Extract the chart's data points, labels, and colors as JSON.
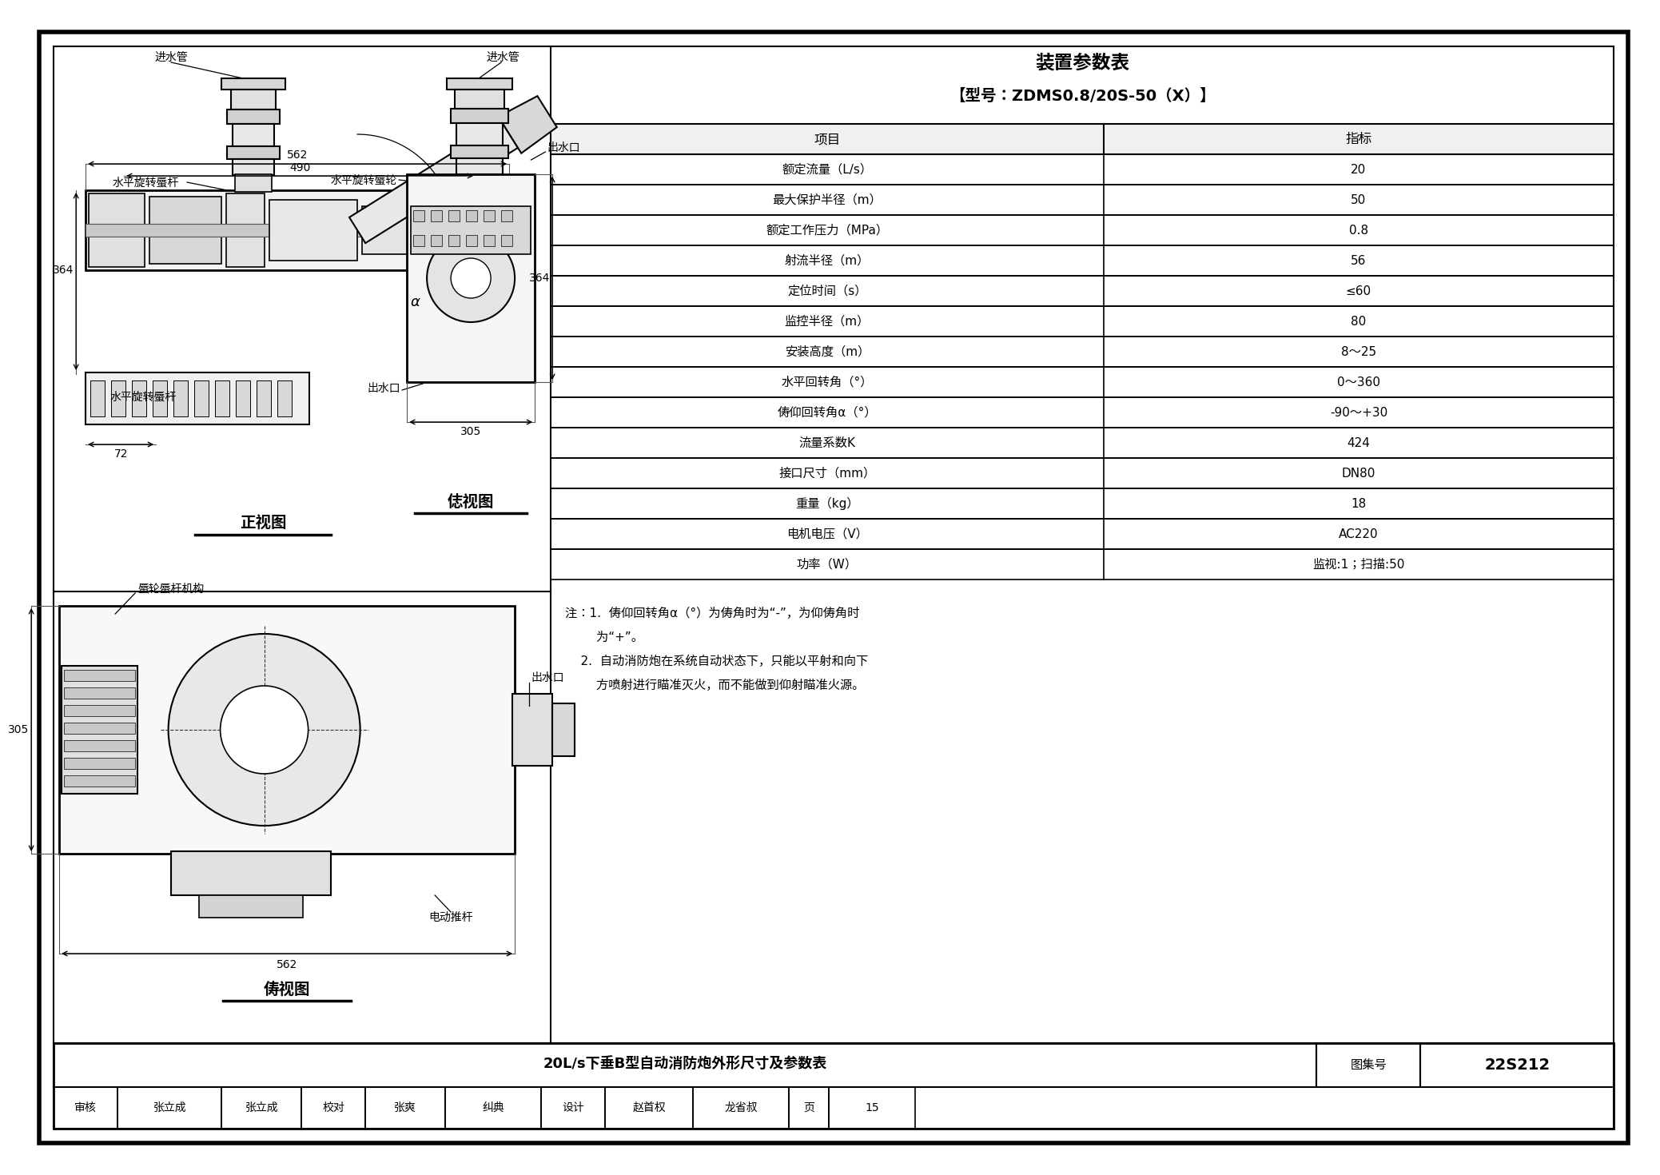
{
  "bg_color": "#ffffff",
  "line_color": "#000000",
  "title": "装置参数表",
  "model": "【型号：ZDMS0.8/20S-50（X）】",
  "table_headers": [
    "项目",
    "指标"
  ],
  "table_rows": [
    [
      "额定流量（L/s）",
      "20"
    ],
    [
      "最大保护半径（m）",
      "50"
    ],
    [
      "额定工作压力（MPa）",
      "0.8"
    ],
    [
      "射流半径（m）",
      "56"
    ],
    [
      "定位时间（s）",
      "≤60"
    ],
    [
      "监控半径（m）",
      "80"
    ],
    [
      "安装高度（m）",
      "8～25"
    ],
    [
      "水平回转角（°）",
      "0～360"
    ],
    [
      "俦仰回转角α（°）",
      "-90～+30"
    ],
    [
      "流量系数K",
      "424"
    ],
    [
      "接口尺寸（mm）",
      "DN80"
    ],
    [
      "重量（kg）",
      "18"
    ],
    [
      "电机电压（V）",
      "AC220"
    ],
    [
      "功率（W）",
      "监视:1；扫描:50"
    ]
  ],
  "note1a": "注：1.  俦仰回转角α（°）为俦角时为“-”，为仰俦角时",
  "note1b": "        为“+”。",
  "note2a": "    2.  自动消防炮在系统自动状态下，只能以平射和向下",
  "note2b": "        方喷射进行瞄准灭火，而不能做到仰射瞄准火源。",
  "title_block_main": "20L/s下垂B型自动消防炮外形尺寸及参数表",
  "title_block_set_label": "图集号",
  "title_block_set_val": "22S212",
  "sig_cells": [
    [
      "审核",
      80
    ],
    [
      "张立成",
      130
    ],
    [
      "张立成",
      100
    ],
    [
      "校对",
      80
    ],
    [
      "张爽",
      100
    ],
    [
      "纠典",
      120
    ],
    [
      "设计",
      80
    ],
    [
      "赵首权",
      110
    ],
    [
      "龙省叔",
      120
    ],
    [
      "页",
      50
    ],
    [
      "15",
      108
    ]
  ],
  "label_jinshui_front": "进水管",
  "label_worm_top": "水平旋转蜃杆",
  "label_562": "562",
  "label_490": "490",
  "label_364_v": "364",
  "label_72": "72",
  "label_chushui": "出水口",
  "label_worm_bot": "水平旋转蜃杆",
  "label_alpha": "α",
  "label_zhengshi": "正视图",
  "label_jinshui_side": "进水管",
  "label_worm_wheel": "水平旋转蜃轮",
  "label_364_side": "364",
  "label_305_side": "305",
  "label_chushui_side": "出水口",
  "label_ceshi": "俧视图",
  "label_worm_mech": "蜃轮蜃杆机构",
  "label_chushui_top": "出水口",
  "label_actuator": "电动推杆",
  "label_562_top": "562",
  "label_305_top": "305",
  "label_fushi": "俦视图"
}
